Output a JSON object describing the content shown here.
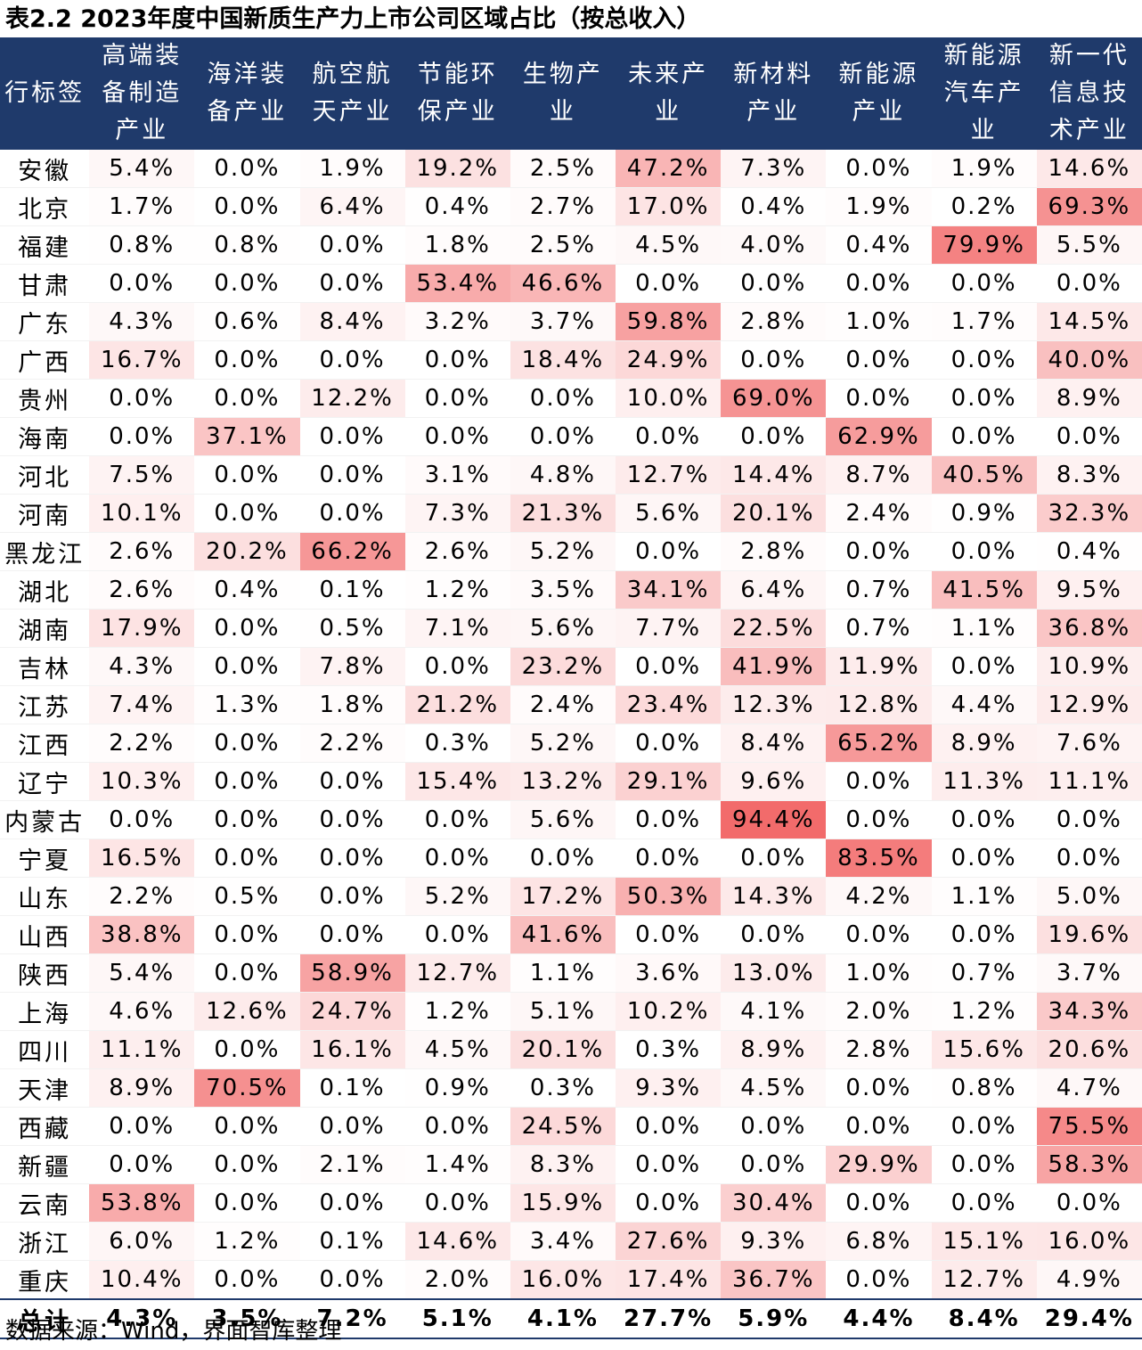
{
  "chart_data": {
    "type": "table",
    "title": "表2.2 2023年度中国新质生产力上市公司区域占比（按总收入）",
    "corner_label": "行标签",
    "columns": [
      "高端装备制造产业",
      "海洋装备产业",
      "航空航天产业",
      "节能环保产业",
      "生物产业",
      "未来产业",
      "新材料产业",
      "新能源产业",
      "新能源汽车产业",
      "新一代信息技术产业"
    ],
    "rows": [
      {
        "label": "安徽",
        "values": [
          5.4,
          0.0,
          1.9,
          19.2,
          2.5,
          47.2,
          7.3,
          0.0,
          1.9,
          14.6
        ]
      },
      {
        "label": "北京",
        "values": [
          1.7,
          0.0,
          6.4,
          0.4,
          2.7,
          17.0,
          0.4,
          1.9,
          0.2,
          69.3
        ]
      },
      {
        "label": "福建",
        "values": [
          0.8,
          0.8,
          0.0,
          1.8,
          2.5,
          4.5,
          4.0,
          0.4,
          79.9,
          5.5
        ]
      },
      {
        "label": "甘肃",
        "values": [
          0.0,
          0.0,
          0.0,
          53.4,
          46.6,
          0.0,
          0.0,
          0.0,
          0.0,
          0.0
        ]
      },
      {
        "label": "广东",
        "values": [
          4.3,
          0.6,
          8.4,
          3.2,
          3.7,
          59.8,
          2.8,
          1.0,
          1.7,
          14.5
        ]
      },
      {
        "label": "广西",
        "values": [
          16.7,
          0.0,
          0.0,
          0.0,
          18.4,
          24.9,
          0.0,
          0.0,
          0.0,
          40.0
        ]
      },
      {
        "label": "贵州",
        "values": [
          0.0,
          0.0,
          12.2,
          0.0,
          0.0,
          10.0,
          69.0,
          0.0,
          0.0,
          8.9
        ]
      },
      {
        "label": "海南",
        "values": [
          0.0,
          37.1,
          0.0,
          0.0,
          0.0,
          0.0,
          0.0,
          62.9,
          0.0,
          0.0
        ]
      },
      {
        "label": "河北",
        "values": [
          7.5,
          0.0,
          0.0,
          3.1,
          4.8,
          12.7,
          14.4,
          8.7,
          40.5,
          8.3
        ]
      },
      {
        "label": "河南",
        "values": [
          10.1,
          0.0,
          0.0,
          7.3,
          21.3,
          5.6,
          20.1,
          2.4,
          0.9,
          32.3
        ]
      },
      {
        "label": "黑龙江",
        "values": [
          2.6,
          20.2,
          66.2,
          2.6,
          5.2,
          0.0,
          2.8,
          0.0,
          0.0,
          0.4
        ]
      },
      {
        "label": "湖北",
        "values": [
          2.6,
          0.4,
          0.1,
          1.2,
          3.5,
          34.1,
          6.4,
          0.7,
          41.5,
          9.5
        ]
      },
      {
        "label": "湖南",
        "values": [
          17.9,
          0.0,
          0.5,
          7.1,
          5.6,
          7.7,
          22.5,
          0.7,
          1.1,
          36.8
        ]
      },
      {
        "label": "吉林",
        "values": [
          4.3,
          0.0,
          7.8,
          0.0,
          23.2,
          0.0,
          41.9,
          11.9,
          0.0,
          10.9
        ]
      },
      {
        "label": "江苏",
        "values": [
          7.4,
          1.3,
          1.8,
          21.2,
          2.4,
          23.4,
          12.3,
          12.8,
          4.4,
          12.9
        ]
      },
      {
        "label": "江西",
        "values": [
          2.2,
          0.0,
          2.2,
          0.3,
          5.2,
          0.0,
          8.4,
          65.2,
          8.9,
          7.6
        ]
      },
      {
        "label": "辽宁",
        "values": [
          10.3,
          0.0,
          0.0,
          15.4,
          13.2,
          29.1,
          9.6,
          0.0,
          11.3,
          11.1
        ]
      },
      {
        "label": "内蒙古",
        "values": [
          0.0,
          0.0,
          0.0,
          0.0,
          5.6,
          0.0,
          94.4,
          0.0,
          0.0,
          0.0
        ]
      },
      {
        "label": "宁夏",
        "values": [
          16.5,
          0.0,
          0.0,
          0.0,
          0.0,
          0.0,
          0.0,
          83.5,
          0.0,
          0.0
        ]
      },
      {
        "label": "山东",
        "values": [
          2.2,
          0.5,
          0.0,
          5.2,
          17.2,
          50.3,
          14.3,
          4.2,
          1.1,
          5.0
        ]
      },
      {
        "label": "山西",
        "values": [
          38.8,
          0.0,
          0.0,
          0.0,
          41.6,
          0.0,
          0.0,
          0.0,
          0.0,
          19.6
        ]
      },
      {
        "label": "陕西",
        "values": [
          5.4,
          0.0,
          58.9,
          12.7,
          1.1,
          3.6,
          13.0,
          1.0,
          0.7,
          3.7
        ]
      },
      {
        "label": "上海",
        "values": [
          4.6,
          12.6,
          24.7,
          1.2,
          5.1,
          10.2,
          4.1,
          2.0,
          1.2,
          34.3
        ]
      },
      {
        "label": "四川",
        "values": [
          11.1,
          0.0,
          16.1,
          4.5,
          20.1,
          0.3,
          8.9,
          2.8,
          15.6,
          20.6
        ]
      },
      {
        "label": "天津",
        "values": [
          8.9,
          70.5,
          0.1,
          0.9,
          0.3,
          9.3,
          4.5,
          0.0,
          0.8,
          4.7
        ]
      },
      {
        "label": "西藏",
        "values": [
          0.0,
          0.0,
          0.0,
          0.0,
          24.5,
          0.0,
          0.0,
          0.0,
          0.0,
          75.5
        ]
      },
      {
        "label": "新疆",
        "values": [
          0.0,
          0.0,
          2.1,
          1.4,
          8.3,
          0.0,
          0.0,
          29.9,
          0.0,
          58.3
        ]
      },
      {
        "label": "云南",
        "values": [
          53.8,
          0.0,
          0.0,
          0.0,
          15.9,
          0.0,
          30.4,
          0.0,
          0.0,
          0.0
        ]
      },
      {
        "label": "浙江",
        "values": [
          6.0,
          1.2,
          0.1,
          14.6,
          3.4,
          27.6,
          9.3,
          6.8,
          15.1,
          16.0
        ]
      },
      {
        "label": "重庆",
        "values": [
          10.4,
          0.0,
          0.0,
          2.0,
          16.0,
          17.4,
          36.7,
          0.0,
          12.7,
          4.9
        ]
      }
    ],
    "total": {
      "label": "总计",
      "values": [
        4.3,
        3.5,
        7.2,
        5.1,
        4.1,
        27.7,
        5.9,
        4.4,
        8.4,
        29.4
      ]
    },
    "unit": "%",
    "color_scale": {
      "low": "#ffffff",
      "high": "#f26b6b",
      "max_value": 94.4
    }
  },
  "source": "数据来源：Wind，界面智库整理"
}
